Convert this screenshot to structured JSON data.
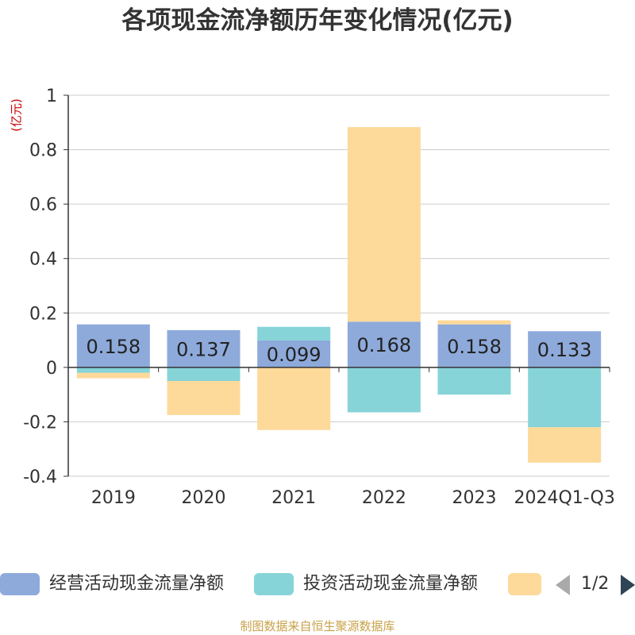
{
  "title": "各项现金流净额历年变化情况(亿元)",
  "y_unit": "(亿元)",
  "source": "制图数据来自恒生聚源数据库",
  "pager": {
    "text": "1/2"
  },
  "chart_data": {
    "type": "bar",
    "stacked": true,
    "categories": [
      "2019",
      "2020",
      "2021",
      "2022",
      "2023",
      "2024Q1-Q3"
    ],
    "ylim": [
      -0.4,
      1
    ],
    "yticks": [
      -0.4,
      -0.2,
      0,
      0.2,
      0.4,
      0.6,
      0.8,
      1
    ],
    "ytick_labels": [
      "-0.4",
      "-0.2",
      "0",
      "0.2",
      "0.4",
      "0.6",
      "0.8",
      "1"
    ],
    "grid": true,
    "legend_position": "bottom",
    "series": [
      {
        "name": "经营活动现金流量净额",
        "color": "#8eaadb",
        "values": [
          0.158,
          0.137,
          0.099,
          0.168,
          0.158,
          0.133
        ],
        "labels": [
          "0.158",
          "0.137",
          "0.099",
          "0.168",
          "0.158",
          "0.133"
        ]
      },
      {
        "name": "投资活动现金流量净额",
        "color": "#86d4d8",
        "values": [
          -0.02,
          -0.05,
          0.05,
          -0.165,
          -0.1,
          -0.22
        ],
        "labels": []
      },
      {
        "name": "",
        "color": "#fdd99a",
        "values": [
          -0.02,
          -0.125,
          -0.23,
          0.715,
          0.015,
          -0.13
        ],
        "labels": []
      }
    ]
  }
}
